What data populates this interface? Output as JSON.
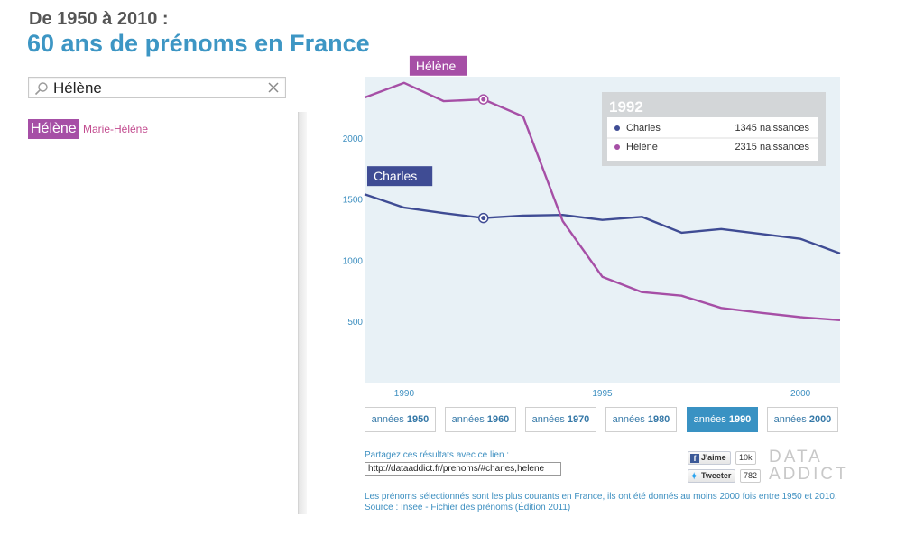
{
  "header": {
    "subtitle": "De 1950 à 2010 :",
    "title": "60 ans de prénoms en France"
  },
  "search": {
    "value": "Hélène"
  },
  "suggestions": {
    "selected": "Hélène",
    "variant": "Marie-Hélène"
  },
  "tooltip": {
    "year": "1992",
    "rows": [
      {
        "name": "Charles",
        "value": "1345 naissances",
        "color": "#3f4c94"
      },
      {
        "name": "Hélène",
        "value": "2315 naissances",
        "color": "#a64fa6"
      }
    ]
  },
  "decades": [
    {
      "prefix": "années ",
      "year": "1950",
      "active": false
    },
    {
      "prefix": "années ",
      "year": "1960",
      "active": false
    },
    {
      "prefix": "années ",
      "year": "1970",
      "active": false
    },
    {
      "prefix": "années ",
      "year": "1980",
      "active": false
    },
    {
      "prefix": "années ",
      "year": "1990",
      "active": true
    },
    {
      "prefix": "années ",
      "year": "2000",
      "active": false
    }
  ],
  "share": {
    "label": "Partagez ces résultats avec ce lien :",
    "url": "http://dataaddict.fr/prenoms/#charles,helene"
  },
  "social": {
    "like_label": "J'aime",
    "like_count": "10k",
    "tweet_label": "Tweeter",
    "tweet_count": "782"
  },
  "footer": {
    "line1": "Les prénoms sélectionnés sont les plus courants en France, ils ont été donnés au moins 2000 fois entre 1950 et 2010.",
    "line2": "Source : Insee - Fichier des prénoms (Édition 2011)"
  },
  "brand": {
    "line1": "DATA",
    "line2": "ADDICT"
  },
  "colors": {
    "accent": "#3d96c4",
    "charles": "#3f4c94",
    "helene": "#a64fa6",
    "plot_bg": "#e8f1f6"
  },
  "chart_data": {
    "type": "line",
    "x": [
      1989,
      1990,
      1991,
      1992,
      1993,
      1994,
      1995,
      1996,
      1997,
      1998,
      1999,
      2000,
      2001
    ],
    "series": [
      {
        "name": "Charles",
        "color": "#3f4c94",
        "values": [
          1540,
          1430,
          1385,
          1345,
          1365,
          1370,
          1330,
          1355,
          1225,
          1255,
          1215,
          1175,
          1055
        ]
      },
      {
        "name": "Hélène",
        "color": "#a64fa6",
        "values": [
          2330,
          2450,
          2300,
          2315,
          2175,
          1320,
          865,
          740,
          710,
          610,
          570,
          535,
          510
        ]
      }
    ],
    "xlim": [
      1989,
      2001
    ],
    "ylim": [
      0,
      2500
    ],
    "xticks": [
      1990,
      1995,
      2000
    ],
    "yticks": [
      500,
      1000,
      1500,
      2000
    ],
    "highlight_x": 1992,
    "grid": false
  }
}
